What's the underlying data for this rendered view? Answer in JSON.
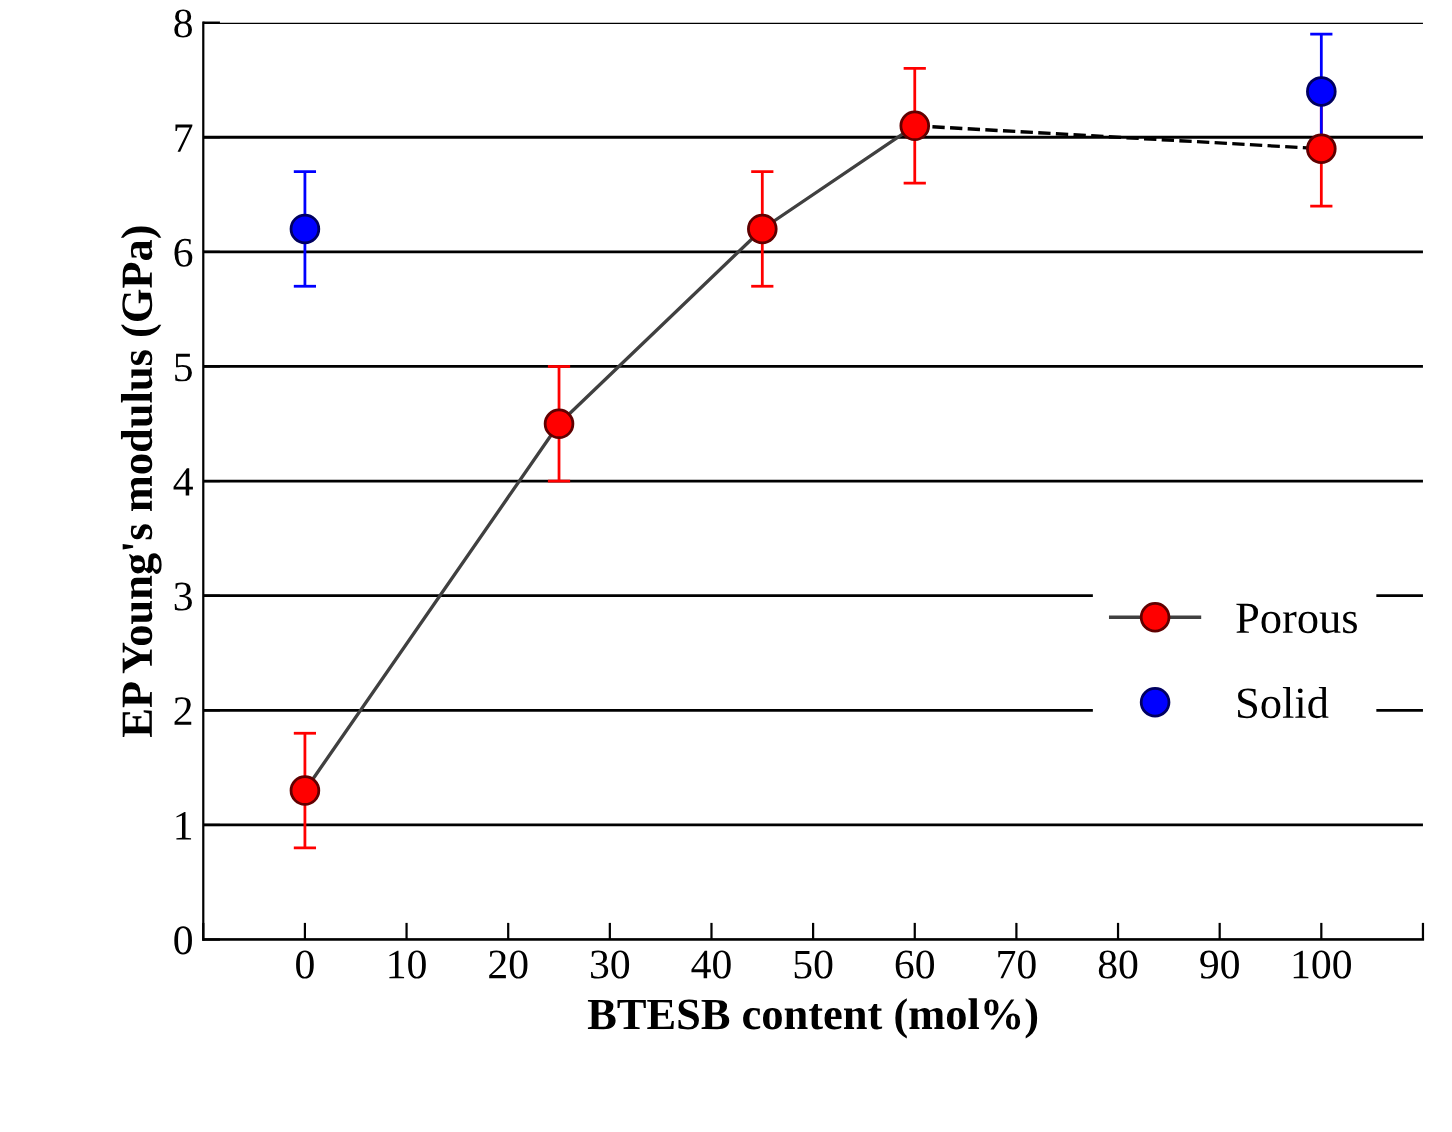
{
  "chart_data": {
    "type": "line",
    "xlabel": "BTESB content (mol%)",
    "ylabel": "EP Young's modulus (GPa)",
    "xlim": [
      -10,
      110
    ],
    "xticks": [
      {
        "value": -10,
        "label": null
      },
      0,
      10,
      20,
      30,
      40,
      50,
      60,
      70,
      80,
      90,
      100,
      {
        "value": 110,
        "label": null
      }
    ],
    "ylim": [
      0,
      8
    ],
    "yticks": [
      0,
      1,
      2,
      3,
      4,
      5,
      6,
      7,
      8
    ],
    "grid": "y",
    "legend": "right",
    "series": [
      {
        "name": "Porous",
        "color": "#ff0000",
        "x": [
          0,
          25,
          45,
          60
        ],
        "values": [
          1.3,
          4.5,
          6.2,
          7.1
        ],
        "errors": [
          0.5,
          0.5,
          0.5,
          0.5
        ],
        "marker": "circle",
        "line_style": "solid"
      },
      {
        "color": "#000000",
        "x": [
          60,
          100
        ],
        "values": [
          7.1,
          6.9
        ],
        "marker": "none",
        "line_style": "dashed"
      },
      {
        "type": "scatter",
        "color": "#ff0000",
        "x": [
          100
        ],
        "values": [
          6.9
        ],
        "errors": [
          0.5
        ],
        "marker": "circle"
      },
      {
        "name": "Solid",
        "type": "scatter",
        "color": "#0000ff",
        "x": [
          0,
          100
        ],
        "values": [
          6.2,
          7.4
        ],
        "errors": [
          0.5,
          0.5
        ],
        "marker": "circle"
      }
    ]
  }
}
